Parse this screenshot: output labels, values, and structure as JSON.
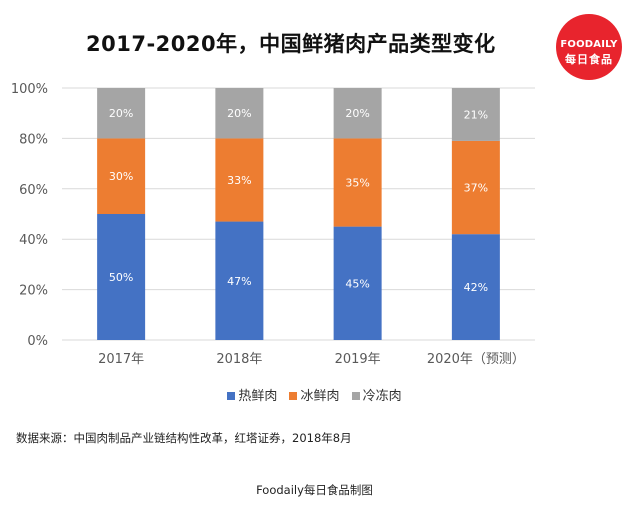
{
  "title": "2017-2020年，中国鲜猪肉产品类型变化",
  "logo": {
    "line1": "FOODAILY",
    "line2": "每日食品"
  },
  "source": "数据来源：中国肉制品产业链结构性改革，红塔证券，2018年8月",
  "credit": "Foodaily每日食品制图",
  "colors": {
    "hot": "#4472c4",
    "chilled": "#ed7d31",
    "frozen": "#a5a5a5",
    "axis_text": "#595959",
    "grid": "#d9d9d9"
  },
  "chart_data": {
    "type": "bar",
    "stacked": true,
    "categories": [
      "2017年",
      "2018年",
      "2019年",
      "2020年（预测）"
    ],
    "series": [
      {
        "name": "热鲜肉",
        "values": [
          50,
          47,
          45,
          42
        ],
        "labels": [
          "50%",
          "47%",
          "45%",
          "42%"
        ]
      },
      {
        "name": "冰鲜肉",
        "values": [
          30,
          33,
          35,
          37
        ],
        "labels": [
          "30%",
          "33%",
          "35%",
          "37%"
        ]
      },
      {
        "name": "冷冻肉",
        "values": [
          20,
          20,
          20,
          21
        ],
        "labels": [
          "20%",
          "20%",
          "20%",
          "21%"
        ]
      }
    ],
    "ylim": [
      0,
      100
    ],
    "yticks": [
      "0%",
      "20%",
      "40%",
      "60%",
      "80%",
      "100%"
    ],
    "grid": true,
    "legend": "bottom"
  }
}
